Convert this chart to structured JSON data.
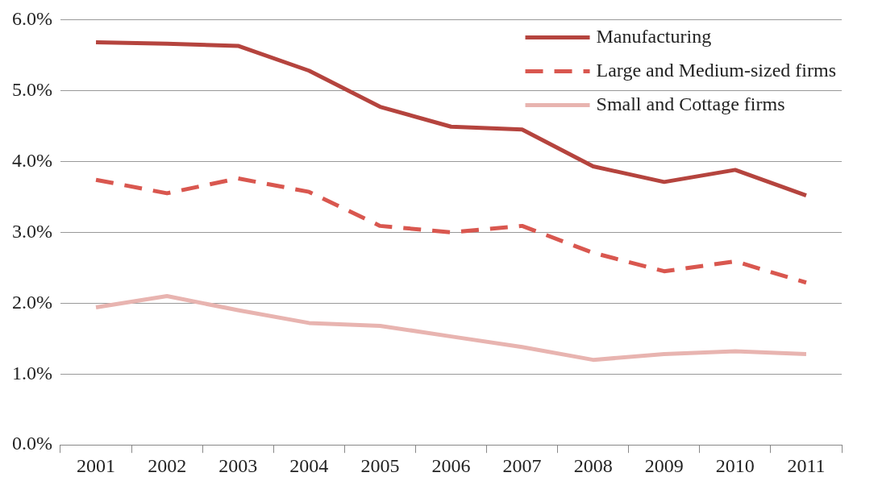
{
  "chart_data": {
    "type": "line",
    "categories": [
      "2001",
      "2002",
      "2003",
      "2004",
      "2005",
      "2006",
      "2007",
      "2008",
      "2009",
      "2010",
      "2011"
    ],
    "series": [
      {
        "name": "Manufacturing",
        "color": "#b5443e",
        "line_style": "solid",
        "values": [
          5.68,
          5.66,
          5.63,
          5.28,
          4.77,
          4.49,
          4.45,
          3.93,
          3.71,
          3.88,
          3.52
        ]
      },
      {
        "name": "Large and Medium-sized firms",
        "color": "#d9574f",
        "line_style": "dashed",
        "values": [
          3.74,
          3.55,
          3.76,
          3.57,
          3.09,
          3.0,
          3.09,
          2.71,
          2.45,
          2.59,
          2.29
        ]
      },
      {
        "name": "Small and Cottage firms",
        "color": "#e8b4b0",
        "line_style": "solid",
        "values": [
          1.94,
          2.1,
          1.9,
          1.72,
          1.68,
          1.53,
          1.38,
          1.2,
          1.28,
          1.32,
          1.28
        ]
      }
    ],
    "ylim": [
      0,
      6
    ],
    "yticks": [
      {
        "value": 0,
        "label": "0.0%"
      },
      {
        "value": 1,
        "label": "1.0%"
      },
      {
        "value": 2,
        "label": "2.0%"
      },
      {
        "value": 3,
        "label": "3.0%"
      },
      {
        "value": 4,
        "label": "4.0%"
      },
      {
        "value": 5,
        "label": "5.0%"
      },
      {
        "value": 6,
        "label": "6.0%"
      }
    ],
    "grid": "y",
    "legend": "top right",
    "marker": "none"
  }
}
